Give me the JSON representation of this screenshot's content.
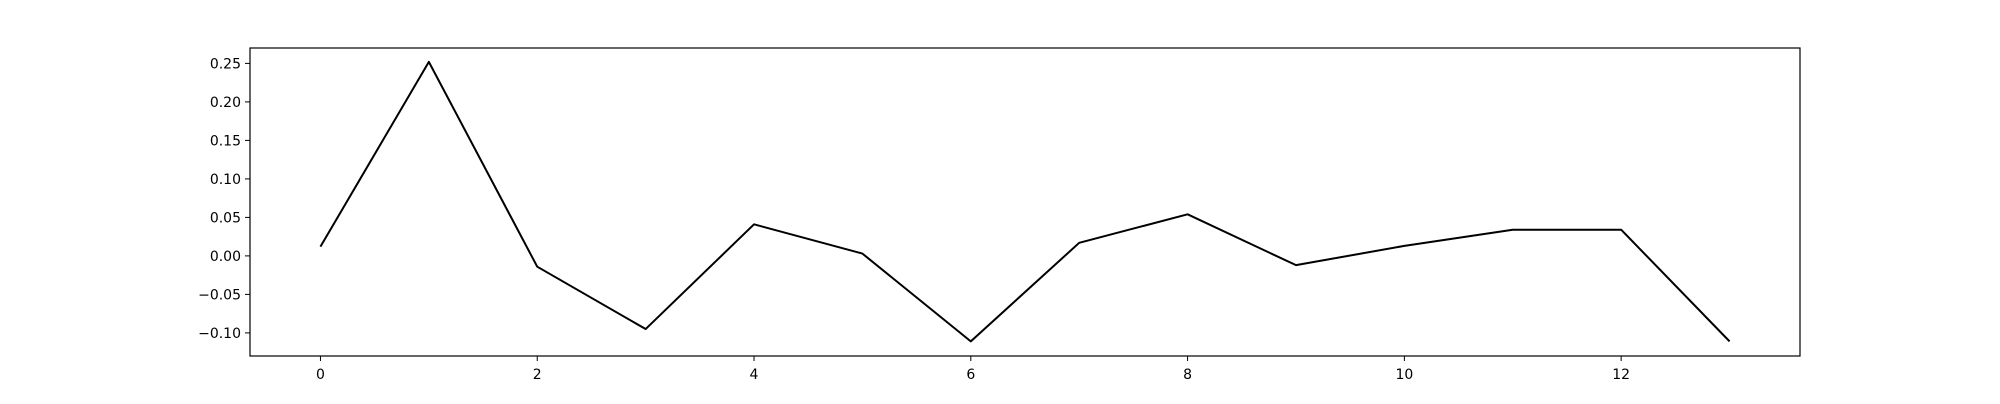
{
  "chart_data": {
    "type": "line",
    "x": [
      0,
      1,
      2,
      3,
      4,
      5,
      6,
      7,
      8,
      9,
      10,
      11,
      12,
      13
    ],
    "series": [
      {
        "values": [
          0.012,
          0.252,
          -0.014,
          -0.095,
          0.041,
          0.003,
          -0.111,
          0.017,
          0.054,
          -0.012,
          0.013,
          0.034,
          0.034,
          -0.111
        ]
      }
    ],
    "xlim": [
      -0.65,
      13.65
    ],
    "ylim": [
      -0.13,
      0.27
    ],
    "xticks": [
      0,
      2,
      4,
      6,
      8,
      10,
      12
    ],
    "xtick_labels": [
      "0",
      "2",
      "4",
      "6",
      "8",
      "10",
      "12"
    ],
    "yticks": [
      0.25,
      0.2,
      0.15,
      0.1,
      0.05,
      0.0,
      -0.05,
      -0.1
    ],
    "ytick_labels": [
      "0.25",
      "0.20",
      "0.15",
      "0.10",
      "0.05",
      "0.00",
      "−0.05",
      "−0.10"
    ],
    "grid": false,
    "line_color": "#000000",
    "title": "",
    "xlabel": "",
    "ylabel": ""
  }
}
